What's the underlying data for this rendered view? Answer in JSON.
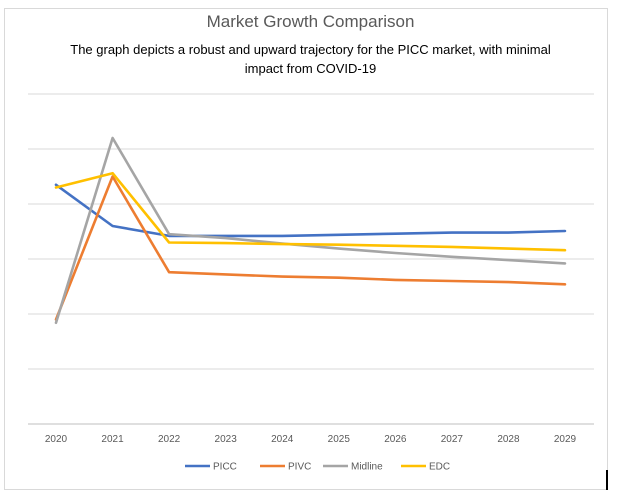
{
  "chart_data": {
    "type": "line",
    "title": "Market Growth Comparison",
    "subtitle": "The graph depicts a robust and upward trajectory for the PICC market, with minimal impact from COVID-19",
    "xlabel": "",
    "ylabel": "",
    "x": [
      "2020",
      "2021",
      "2022",
      "2023",
      "2024",
      "2025",
      "2026",
      "2027",
      "2028",
      "2029"
    ],
    "ylim": [
      0,
      6
    ],
    "grid": true,
    "legend": "bottom",
    "series": [
      {
        "name": "PICC",
        "color": "#4472c4",
        "values": [
          4.35,
          3.6,
          3.42,
          3.42,
          3.42,
          3.44,
          3.46,
          3.48,
          3.48,
          3.51
        ]
      },
      {
        "name": "PIVC",
        "color": "#ed7d31",
        "values": [
          1.9,
          4.5,
          2.76,
          2.72,
          2.68,
          2.66,
          2.62,
          2.6,
          2.58,
          2.54
        ]
      },
      {
        "name": "Midline",
        "color": "#a5a5a5",
        "values": [
          1.84,
          5.2,
          3.45,
          3.38,
          3.28,
          3.19,
          3.11,
          3.04,
          2.98,
          2.92
        ]
      },
      {
        "name": "EDC",
        "color": "#ffc000",
        "values": [
          4.3,
          4.56,
          3.3,
          3.29,
          3.27,
          3.26,
          3.24,
          3.22,
          3.19,
          3.16
        ]
      }
    ]
  }
}
